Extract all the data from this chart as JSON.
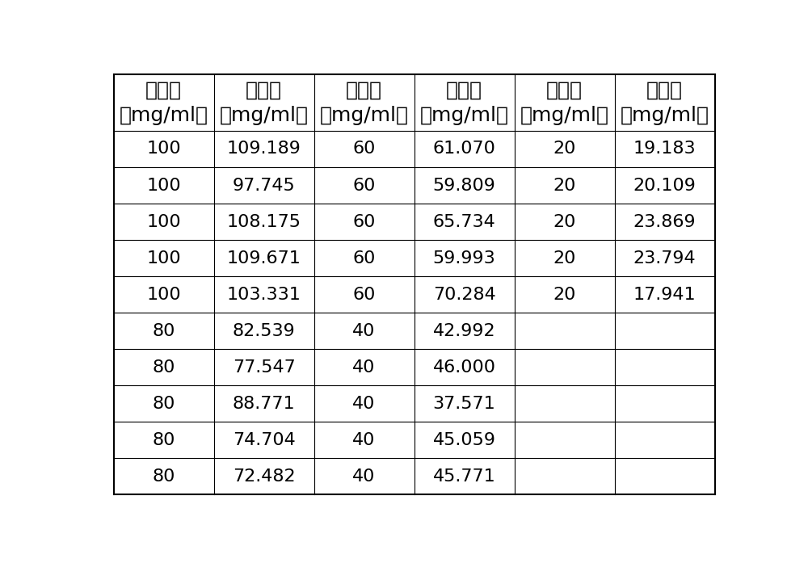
{
  "rows": [
    [
      "100",
      "109.189",
      "60",
      "61.070",
      "20",
      "19.183"
    ],
    [
      "100",
      "97.745",
      "60",
      "59.809",
      "20",
      "20.109"
    ],
    [
      "100",
      "108.175",
      "60",
      "65.734",
      "20",
      "23.869"
    ],
    [
      "100",
      "109.671",
      "60",
      "59.993",
      "20",
      "23.794"
    ],
    [
      "100",
      "103.331",
      "60",
      "70.284",
      "20",
      "17.941"
    ],
    [
      "80",
      "82.539",
      "40",
      "42.992",
      "",
      ""
    ],
    [
      "80",
      "77.547",
      "40",
      "46.000",
      "",
      ""
    ],
    [
      "80",
      "88.771",
      "40",
      "37.571",
      "",
      ""
    ],
    [
      "80",
      "74.704",
      "40",
      "45.059",
      "",
      ""
    ],
    [
      "80",
      "72.482",
      "40",
      "45.771",
      "",
      ""
    ]
  ],
  "n_cols": 6,
  "n_rows": 10,
  "header_line1": [
    "真实值",
    "预测值",
    "真实值",
    "预测值",
    "真实值",
    "预测值"
  ],
  "header_line2": [
    "（mg/ml）",
    "（mg/ml）",
    "（mg/ml）",
    "（mg/ml）",
    "（mg/ml）",
    "（mg/ml）"
  ],
  "bg_color": "#ffffff",
  "border_color": "#000000",
  "text_color": "#000000",
  "font_size": 16,
  "header_font_size": 18
}
